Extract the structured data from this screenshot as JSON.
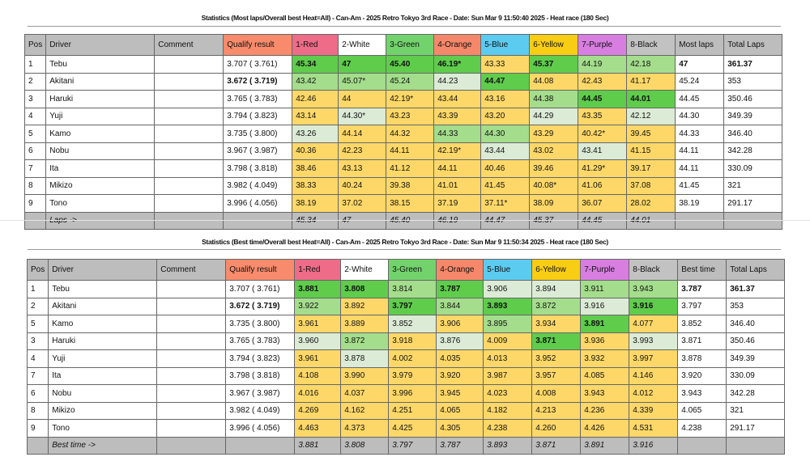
{
  "colors": {
    "d": "#5fcc4c",
    "l": "#a4dd8c",
    "p": "#dcebd6",
    "y": "#fdd868",
    "w": "#ffffff"
  },
  "header_colors": [
    "#bdbdbd",
    "#bdbdbd",
    "#bdbdbd",
    "#f78b6c",
    "#ee6c88",
    "#ffffff",
    "#72d36c",
    "#f5886a",
    "#5ccbf0",
    "#f8cd14",
    "#d87ee0",
    "#c2c2c2",
    "#bdbdbd",
    "#bdbdbd"
  ],
  "tables": [
    {
      "title": "Statistics (Most laps/Overall best Heat=All) - Can-Am - 2025 Retro Tokyo 3rd Race - Date: Sun Mar  9 11:50:40 2025 - Heat race (180 Sec)",
      "columns": [
        "Pos",
        "Driver",
        "Comment",
        "Qualify result",
        "1-Red",
        "2-White",
        "3-Green",
        "4-Orange",
        "5-Blue",
        "6-Yellow",
        "7-Purple",
        "8-Black",
        "Most laps",
        "Total Laps"
      ],
      "rows": [
        {
          "pos": "1",
          "driver": "Tebu",
          "comment": "",
          "qualify": "3.707 ( 3.761)",
          "qb": false,
          "laps": [
            [
              "45.34",
              "d"
            ],
            [
              "47",
              "d"
            ],
            [
              "45.40",
              "d"
            ],
            [
              "46.19*",
              "d"
            ],
            [
              "43.33",
              "y"
            ],
            [
              "45.37",
              "d"
            ],
            [
              "44.19",
              "l"
            ],
            [
              "42.18",
              "l"
            ]
          ],
          "best": "47",
          "total": "361.37",
          "tb": true
        },
        {
          "pos": "2",
          "driver": "Akitani",
          "comment": "",
          "qualify": "3.672 ( 3.719)",
          "qb": true,
          "laps": [
            [
              "43.42",
              "l"
            ],
            [
              "45.07*",
              "l"
            ],
            [
              "45.24",
              "l"
            ],
            [
              "44.23",
              "p"
            ],
            [
              "44.47",
              "d"
            ],
            [
              "44.08",
              "y"
            ],
            [
              "42.43",
              "y"
            ],
            [
              "41.17",
              "y"
            ]
          ],
          "best": "45.24",
          "total": "353",
          "tb": false
        },
        {
          "pos": "3",
          "driver": "Haruki",
          "comment": "",
          "qualify": "3.765 ( 3.783)",
          "qb": false,
          "laps": [
            [
              "42.46",
              "y"
            ],
            [
              "44",
              "y"
            ],
            [
              "42.19*",
              "y"
            ],
            [
              "43.44",
              "y"
            ],
            [
              "43.16",
              "y"
            ],
            [
              "44.38",
              "l"
            ],
            [
              "44.45",
              "d"
            ],
            [
              "44.01",
              "d"
            ]
          ],
          "best": "44.45",
          "total": "350.46",
          "tb": false
        },
        {
          "pos": "4",
          "driver": "Yuji",
          "comment": "",
          "qualify": "3.794 ( 3.823)",
          "qb": false,
          "laps": [
            [
              "43.14",
              "y"
            ],
            [
              "44.30*",
              "p"
            ],
            [
              "43.23",
              "y"
            ],
            [
              "43.39",
              "y"
            ],
            [
              "43.20",
              "y"
            ],
            [
              "44.29",
              "p"
            ],
            [
              "43.35",
              "y"
            ],
            [
              "42.12",
              "p"
            ]
          ],
          "best": "44.30",
          "total": "349.39",
          "tb": false
        },
        {
          "pos": "5",
          "driver": "Kamo",
          "comment": "",
          "qualify": "3.735 ( 3.800)",
          "qb": false,
          "laps": [
            [
              "43.26",
              "p"
            ],
            [
              "44.14",
              "y"
            ],
            [
              "44.32",
              "y"
            ],
            [
              "44.33",
              "l"
            ],
            [
              "44.30",
              "l"
            ],
            [
              "43.29",
              "y"
            ],
            [
              "40.42*",
              "y"
            ],
            [
              "39.45",
              "y"
            ]
          ],
          "best": "44.33",
          "total": "346.40",
          "tb": false
        },
        {
          "pos": "6",
          "driver": "Nobu",
          "comment": "",
          "qualify": "3.967 ( 3.987)",
          "qb": false,
          "laps": [
            [
              "40.36",
              "y"
            ],
            [
              "42.23",
              "y"
            ],
            [
              "44.11",
              "y"
            ],
            [
              "42.19*",
              "y"
            ],
            [
              "43.44",
              "p"
            ],
            [
              "43.02",
              "y"
            ],
            [
              "43.41",
              "p"
            ],
            [
              "41.15",
              "y"
            ]
          ],
          "best": "44.11",
          "total": "342.28",
          "tb": false
        },
        {
          "pos": "7",
          "driver": "Ita",
          "comment": "",
          "qualify": "3.798 ( 3.818)",
          "qb": false,
          "laps": [
            [
              "38.46",
              "y"
            ],
            [
              "43.13",
              "y"
            ],
            [
              "41.12",
              "y"
            ],
            [
              "44.11",
              "y"
            ],
            [
              "40.46",
              "y"
            ],
            [
              "39.46",
              "y"
            ],
            [
              "41.29*",
              "y"
            ],
            [
              "39.17",
              "y"
            ]
          ],
          "best": "44.11",
          "total": "330.09",
          "tb": false
        },
        {
          "pos": "8",
          "driver": "Mikizo",
          "comment": "",
          "qualify": "3.982 ( 4.049)",
          "qb": false,
          "laps": [
            [
              "38.33",
              "y"
            ],
            [
              "40.24",
              "y"
            ],
            [
              "39.38",
              "y"
            ],
            [
              "41.01",
              "y"
            ],
            [
              "41.45",
              "y"
            ],
            [
              "40.08*",
              "y"
            ],
            [
              "41.06",
              "y"
            ],
            [
              "37.08",
              "y"
            ]
          ],
          "best": "41.45",
          "total": "321",
          "tb": false
        },
        {
          "pos": "9",
          "driver": "Tono",
          "comment": "",
          "qualify": "3.996 ( 4.056)",
          "qb": false,
          "laps": [
            [
              "38.19",
              "y"
            ],
            [
              "37.02",
              "y"
            ],
            [
              "38.15",
              "y"
            ],
            [
              "37.19",
              "y"
            ],
            [
              "37.11*",
              "y"
            ],
            [
              "38.09",
              "y"
            ],
            [
              "36.07",
              "y"
            ],
            [
              "28.02",
              "y"
            ]
          ],
          "best": "38.19",
          "total": "291.17",
          "tb": false
        }
      ],
      "footer_label": "Laps ->",
      "footer_values": [
        "45.34",
        "47",
        "45.40",
        "46.19",
        "44.47",
        "45.37",
        "44.45",
        "44.01"
      ]
    },
    {
      "title": "Statistics (Best time/Overall best Heat=All) - Can-Am - 2025 Retro Tokyo 3rd Race - Date: Sun Mar  9 11:50:34 2025 - Heat race (180 Sec)",
      "columns": [
        "Pos",
        "Driver",
        "Comment",
        "Qualify result",
        "1-Red",
        "2-White",
        "3-Green",
        "4-Orange",
        "5-Blue",
        "6-Yellow",
        "7-Purple",
        "8-Black",
        "Best time",
        "Total Laps"
      ],
      "rows": [
        {
          "pos": "1",
          "driver": "Tebu",
          "comment": "",
          "qualify": "3.707 ( 3.761)",
          "qb": false,
          "laps": [
            [
              "3.881",
              "d"
            ],
            [
              "3.808",
              "d"
            ],
            [
              "3.814",
              "l"
            ],
            [
              "3.787",
              "d"
            ],
            [
              "3.906",
              "p"
            ],
            [
              "3.894",
              "p"
            ],
            [
              "3.911",
              "l"
            ],
            [
              "3.943",
              "l"
            ]
          ],
          "best": "3.787",
          "total": "361.37",
          "tb": true
        },
        {
          "pos": "2",
          "driver": "Akitani",
          "comment": "",
          "qualify": "3.672 ( 3.719)",
          "qb": true,
          "laps": [
            [
              "3.922",
              "l"
            ],
            [
              "3.892",
              "y"
            ],
            [
              "3.797",
              "d"
            ],
            [
              "3.844",
              "l"
            ],
            [
              "3.893",
              "d"
            ],
            [
              "3.872",
              "l"
            ],
            [
              "3.916",
              "p"
            ],
            [
              "3.916",
              "d"
            ]
          ],
          "best": "3.797",
          "total": "353",
          "tb": false
        },
        {
          "pos": "5",
          "driver": "Kamo",
          "comment": "",
          "qualify": "3.735 ( 3.800)",
          "qb": false,
          "laps": [
            [
              "3.961",
              "y"
            ],
            [
              "3.889",
              "y"
            ],
            [
              "3.852",
              "p"
            ],
            [
              "3.906",
              "y"
            ],
            [
              "3.895",
              "l"
            ],
            [
              "3.934",
              "y"
            ],
            [
              "3.891",
              "d"
            ],
            [
              "4.077",
              "y"
            ]
          ],
          "best": "3.852",
          "total": "346.40",
          "tb": false
        },
        {
          "pos": "3",
          "driver": "Haruki",
          "comment": "",
          "qualify": "3.765 ( 3.783)",
          "qb": false,
          "laps": [
            [
              "3.960",
              "p"
            ],
            [
              "3.872",
              "l"
            ],
            [
              "3.918",
              "y"
            ],
            [
              "3.876",
              "p"
            ],
            [
              "4.009",
              "y"
            ],
            [
              "3.871",
              "d"
            ],
            [
              "3.936",
              "y"
            ],
            [
              "3.993",
              "p"
            ]
          ],
          "best": "3.871",
          "total": "350.46",
          "tb": false
        },
        {
          "pos": "4",
          "driver": "Yuji",
          "comment": "",
          "qualify": "3.794 ( 3.823)",
          "qb": false,
          "laps": [
            [
              "3.961",
              "y"
            ],
            [
              "3.878",
              "p"
            ],
            [
              "4.002",
              "y"
            ],
            [
              "4.035",
              "y"
            ],
            [
              "4.013",
              "y"
            ],
            [
              "3.952",
              "y"
            ],
            [
              "3.932",
              "y"
            ],
            [
              "3.997",
              "y"
            ]
          ],
          "best": "3.878",
          "total": "349.39",
          "tb": false
        },
        {
          "pos": "7",
          "driver": "Ita",
          "comment": "",
          "qualify": "3.798 ( 3.818)",
          "qb": false,
          "laps": [
            [
              "4.108",
              "y"
            ],
            [
              "3.990",
              "y"
            ],
            [
              "3.979",
              "y"
            ],
            [
              "3.920",
              "y"
            ],
            [
              "3.987",
              "y"
            ],
            [
              "3.957",
              "y"
            ],
            [
              "4.085",
              "y"
            ],
            [
              "4.146",
              "y"
            ]
          ],
          "best": "3.920",
          "total": "330.09",
          "tb": false
        },
        {
          "pos": "6",
          "driver": "Nobu",
          "comment": "",
          "qualify": "3.967 ( 3.987)",
          "qb": false,
          "laps": [
            [
              "4.016",
              "y"
            ],
            [
              "4.037",
              "y"
            ],
            [
              "3.996",
              "y"
            ],
            [
              "3.945",
              "y"
            ],
            [
              "4.023",
              "y"
            ],
            [
              "4.008",
              "y"
            ],
            [
              "3.943",
              "y"
            ],
            [
              "4.012",
              "y"
            ]
          ],
          "best": "3.943",
          "total": "342.28",
          "tb": false
        },
        {
          "pos": "8",
          "driver": "Mikizo",
          "comment": "",
          "qualify": "3.982 ( 4.049)",
          "qb": false,
          "laps": [
            [
              "4.269",
              "y"
            ],
            [
              "4.162",
              "y"
            ],
            [
              "4.251",
              "y"
            ],
            [
              "4.065",
              "y"
            ],
            [
              "4.182",
              "y"
            ],
            [
              "4.213",
              "y"
            ],
            [
              "4.236",
              "y"
            ],
            [
              "4.339",
              "y"
            ]
          ],
          "best": "4.065",
          "total": "321",
          "tb": false
        },
        {
          "pos": "9",
          "driver": "Tono",
          "comment": "",
          "qualify": "3.996 ( 4.056)",
          "qb": false,
          "laps": [
            [
              "4.463",
              "y"
            ],
            [
              "4.373",
              "y"
            ],
            [
              "4.425",
              "y"
            ],
            [
              "4.305",
              "y"
            ],
            [
              "4.238",
              "y"
            ],
            [
              "4.260",
              "y"
            ],
            [
              "4.426",
              "y"
            ],
            [
              "4.531",
              "y"
            ]
          ],
          "best": "4.238",
          "total": "291.17",
          "tb": false
        }
      ],
      "footer_label": "Best time ->",
      "footer_values": [
        "3.881",
        "3.808",
        "3.797",
        "3.787",
        "3.893",
        "3.871",
        "3.891",
        "3.916"
      ]
    }
  ]
}
